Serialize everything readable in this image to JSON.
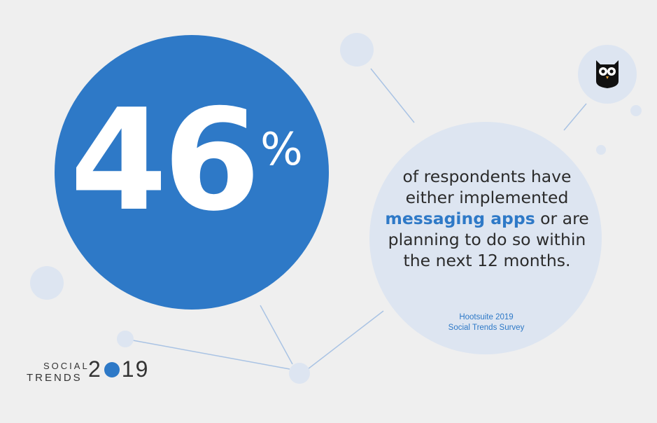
{
  "stat": {
    "number": "46",
    "unit": "%"
  },
  "description": {
    "part1": "of respondents have either implemented ",
    "highlight": "messaging apps",
    "part2": " or are planning to do so within the next 12 months."
  },
  "source": {
    "line1": "Hootsuite 2019",
    "line2": "Social Trends Survey"
  },
  "branding": {
    "social": "SOCIAL",
    "trends": "TRENDS",
    "year_chars": [
      "2",
      "0",
      "1",
      "9"
    ]
  },
  "logo": {
    "icon": "owl-icon"
  },
  "colors": {
    "accent": "#2e79c7",
    "circle_light": "#dde5f1",
    "background": "#efefef",
    "text": "#2b2b2b"
  }
}
